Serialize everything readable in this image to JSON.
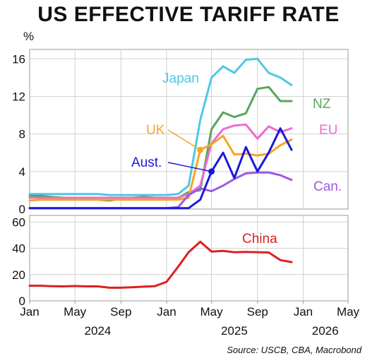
{
  "title": "US EFFECTIVE TARIFF RATE",
  "source": "Source: USCB, CBA, Macrobond",
  "chart_data": [
    {
      "type": "line",
      "unit": "%",
      "ylim": [
        0,
        17
      ],
      "yticks": [
        "0",
        "4",
        "8",
        "12",
        "16"
      ],
      "ytick_values": [
        0,
        4,
        8,
        12,
        16
      ],
      "grid": true,
      "series": [
        {
          "name": "Japan",
          "color": "#4ec8e6",
          "x": [
            "2024-01",
            "2024-02",
            "2024-03",
            "2024-04",
            "2024-05",
            "2024-06",
            "2024-07",
            "2024-08",
            "2024-09",
            "2024-10",
            "2024-11",
            "2024-12",
            "2025-01",
            "2025-02",
            "2025-03",
            "2025-04",
            "2025-05",
            "2025-06",
            "2025-07",
            "2025-08",
            "2025-09",
            "2025-10",
            "2025-11",
            "2025-12"
          ],
          "values": [
            1.6,
            1.6,
            1.6,
            1.6,
            1.6,
            1.6,
            1.6,
            1.5,
            1.5,
            1.5,
            1.5,
            1.5,
            1.5,
            1.6,
            2.5,
            9.5,
            14.0,
            15.2,
            14.5,
            15.9,
            16.0,
            14.5,
            14.0,
            13.2
          ]
        },
        {
          "name": "NZ",
          "color": "#5aa55a",
          "x": [
            "2024-01",
            "2024-02",
            "2024-03",
            "2024-04",
            "2024-05",
            "2024-06",
            "2024-07",
            "2024-08",
            "2024-09",
            "2024-10",
            "2024-11",
            "2024-12",
            "2025-01",
            "2025-02",
            "2025-03",
            "2025-04",
            "2025-05",
            "2025-06",
            "2025-07",
            "2025-08",
            "2025-09",
            "2025-10",
            "2025-11",
            "2025-12"
          ],
          "values": [
            1.4,
            1.4,
            1.3,
            1.2,
            1.2,
            1.1,
            1.0,
            0.9,
            1.1,
            1.2,
            1.3,
            1.2,
            1.1,
            1.2,
            1.8,
            2.0,
            8.5,
            10.3,
            9.8,
            10.2,
            12.8,
            13.0,
            11.5,
            11.5
          ]
        },
        {
          "name": "EU",
          "color": "#e96ed1",
          "x": [
            "2024-01",
            "2024-02",
            "2024-03",
            "2024-04",
            "2024-05",
            "2024-06",
            "2024-07",
            "2024-08",
            "2024-09",
            "2024-10",
            "2024-11",
            "2024-12",
            "2025-01",
            "2025-02",
            "2025-03",
            "2025-04",
            "2025-05",
            "2025-06",
            "2025-07",
            "2025-08",
            "2025-09",
            "2025-10",
            "2025-11",
            "2025-12"
          ],
          "values": [
            1.2,
            1.2,
            1.2,
            1.2,
            1.2,
            1.2,
            1.2,
            1.2,
            1.2,
            1.2,
            1.2,
            1.2,
            1.2,
            1.2,
            1.6,
            2.5,
            7.0,
            8.5,
            8.9,
            9.0,
            7.5,
            8.8,
            8.2,
            8.6
          ]
        },
        {
          "name": "UK",
          "color": "#f5a623",
          "x": [
            "2024-01",
            "2024-02",
            "2024-03",
            "2024-04",
            "2024-05",
            "2024-06",
            "2024-07",
            "2024-08",
            "2024-09",
            "2024-10",
            "2024-11",
            "2024-12",
            "2025-01",
            "2025-02",
            "2025-03",
            "2025-04",
            "2025-05",
            "2025-06",
            "2025-07",
            "2025-08",
            "2025-09",
            "2025-10",
            "2025-11",
            "2025-12"
          ],
          "values": [
            0.9,
            1.0,
            1.0,
            1.0,
            1.0,
            1.0,
            1.0,
            1.0,
            1.0,
            1.0,
            1.0,
            1.0,
            1.0,
            1.0,
            1.2,
            6.3,
            6.9,
            7.8,
            5.8,
            5.9,
            5.7,
            5.9,
            6.8,
            7.4
          ]
        },
        {
          "name": "Can.",
          "color": "#9b59e6",
          "x": [
            "2024-01",
            "2024-02",
            "2024-03",
            "2024-04",
            "2024-05",
            "2024-06",
            "2024-07",
            "2024-08",
            "2024-09",
            "2024-10",
            "2024-11",
            "2024-12",
            "2025-01",
            "2025-02",
            "2025-03",
            "2025-04",
            "2025-05",
            "2025-06",
            "2025-07",
            "2025-08",
            "2025-09",
            "2025-10",
            "2025-11",
            "2025-12"
          ],
          "values": [
            0.1,
            0.1,
            0.1,
            0.1,
            0.1,
            0.1,
            0.1,
            0.1,
            0.1,
            0.1,
            0.1,
            0.1,
            0.1,
            0.2,
            1.5,
            2.2,
            1.9,
            2.5,
            3.2,
            3.8,
            3.9,
            3.9,
            3.6,
            3.1
          ]
        },
        {
          "name": "Aust.",
          "color": "#1a1adc",
          "x": [
            "2024-01",
            "2024-02",
            "2024-03",
            "2024-04",
            "2024-05",
            "2024-06",
            "2024-07",
            "2024-08",
            "2024-09",
            "2024-10",
            "2024-11",
            "2024-12",
            "2025-01",
            "2025-02",
            "2025-03",
            "2025-04",
            "2025-05",
            "2025-06",
            "2025-07",
            "2025-08",
            "2025-09",
            "2025-10",
            "2025-11",
            "2025-12"
          ],
          "values": [
            0.1,
            0.1,
            0.1,
            0.1,
            0.1,
            0.1,
            0.1,
            0.1,
            0.1,
            0.1,
            0.1,
            0.1,
            0.1,
            0.1,
            0.1,
            1.0,
            4.0,
            6.0,
            3.3,
            6.6,
            4.0,
            6.0,
            8.6,
            6.3
          ]
        }
      ],
      "annotations": [
        {
          "text": "Japan",
          "series": "Japan"
        },
        {
          "text": "NZ",
          "series": "NZ"
        },
        {
          "text": "EU",
          "series": "EU"
        },
        {
          "text": "UK",
          "series": "UK"
        },
        {
          "text": "Aust.",
          "series": "Aust."
        },
        {
          "text": "Can.",
          "series": "Can."
        }
      ]
    },
    {
      "type": "line",
      "ylim": [
        0,
        65
      ],
      "yticks": [
        "0",
        "20",
        "40",
        "60"
      ],
      "ytick_values": [
        0,
        20,
        40,
        60
      ],
      "grid": true,
      "series": [
        {
          "name": "China",
          "color": "#dd1f1f",
          "x": [
            "2024-01",
            "2024-02",
            "2024-03",
            "2024-04",
            "2024-05",
            "2024-06",
            "2024-07",
            "2024-08",
            "2024-09",
            "2024-10",
            "2024-11",
            "2024-12",
            "2025-01",
            "2025-02",
            "2025-03",
            "2025-04",
            "2025-05",
            "2025-06",
            "2025-07",
            "2025-08",
            "2025-09",
            "2025-10",
            "2025-11",
            "2025-12"
          ],
          "values": [
            11.5,
            11.5,
            11.2,
            11.0,
            11.3,
            11.0,
            11.0,
            10.0,
            10.0,
            10.3,
            10.8,
            11.2,
            14.5,
            26.0,
            37.0,
            45.0,
            37.5,
            38.0,
            37.0,
            37.2,
            37.0,
            36.8,
            31.0,
            29.5
          ]
        }
      ],
      "annotations": [
        {
          "text": "China",
          "series": "China"
        }
      ]
    }
  ],
  "x_axis": {
    "month_ticks": [
      "Jan",
      "May",
      "Sep",
      "Jan",
      "May",
      "Sep",
      "Jan",
      "May"
    ],
    "month_tick_dates": [
      "2024-01",
      "2024-05",
      "2024-09",
      "2025-01",
      "2025-05",
      "2025-09",
      "2026-01",
      "2026-05"
    ],
    "year_labels": [
      "2024",
      "2025",
      "2026"
    ],
    "year_label_dates": [
      "2024-07",
      "2025-07",
      "2026-03"
    ]
  }
}
